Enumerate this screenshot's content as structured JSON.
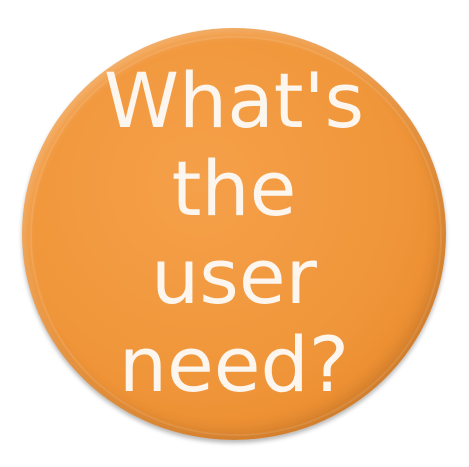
{
  "badge": {
    "lines": [
      "What's",
      "the",
      "user",
      "need?"
    ],
    "colors": {
      "fill": "#f0963a",
      "text": "#fdf6ee"
    }
  }
}
